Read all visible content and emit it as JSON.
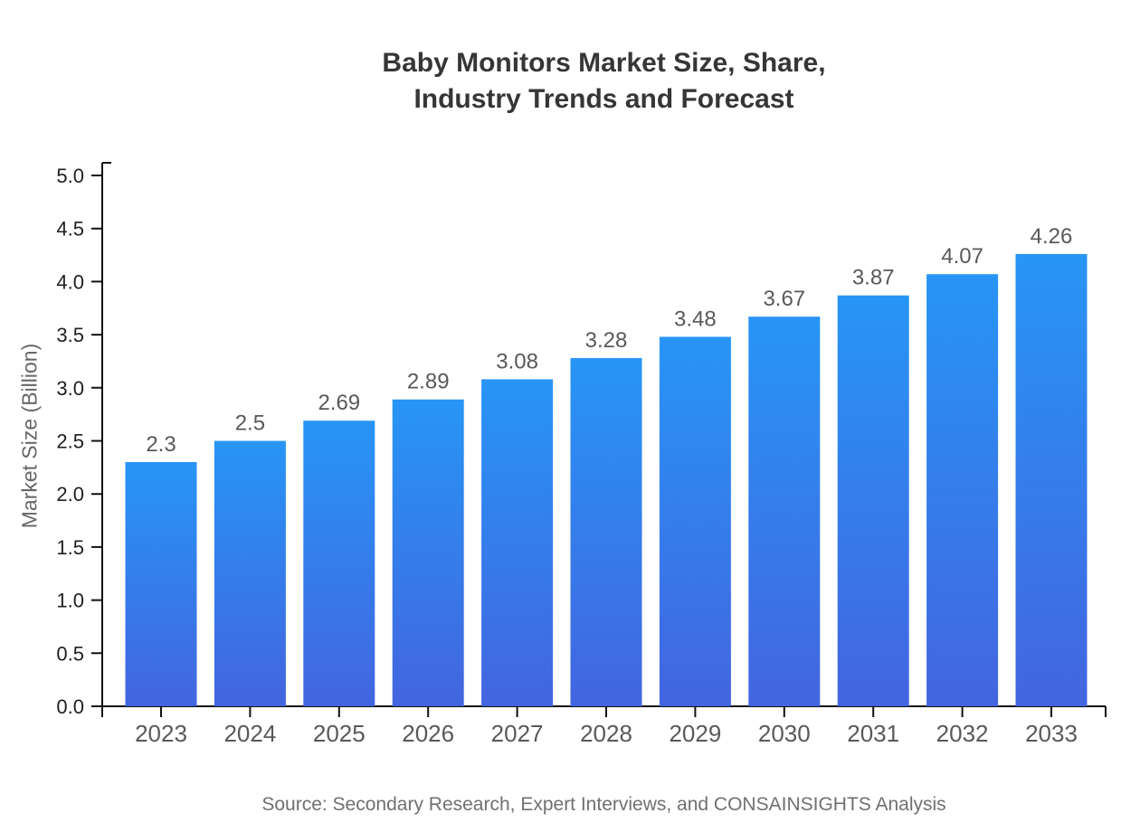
{
  "title": {
    "line1": "Baby Monitors Market Size, Share,",
    "line2": "Industry Trends and Forecast"
  },
  "source": {
    "text": "Source: Secondary Research, Expert Interviews, and CONSAINSIGHTS Analysis"
  },
  "chart_data": {
    "type": "bar",
    "title": "Baby Monitors Market Size, Share, Industry Trends and Forecast",
    "categories": [
      "2023",
      "2024",
      "2025",
      "2026",
      "2027",
      "2028",
      "2029",
      "2030",
      "2031",
      "2032",
      "2033"
    ],
    "values": [
      2.3,
      2.5,
      2.69,
      2.89,
      3.08,
      3.28,
      3.48,
      3.67,
      3.87,
      4.07,
      4.26
    ],
    "value_labels": [
      "2.3",
      "2.5",
      "2.69",
      "2.89",
      "3.08",
      "3.28",
      "3.48",
      "3.67",
      "3.87",
      "4.07",
      "4.26"
    ],
    "xlabel": "",
    "ylabel": "Market Size (Billion)",
    "ylim": [
      0,
      5
    ],
    "ytick_step": 0.5,
    "yticks": [
      "0.0",
      "0.5",
      "1.0",
      "1.5",
      "2.0",
      "2.5",
      "3.0",
      "3.5",
      "4.0",
      "4.5",
      "5.0"
    ],
    "grid": false,
    "legend": "none",
    "colors": {
      "bar_gradient_top": "#2795F6",
      "bar_gradient_bottom": "#4365DF",
      "axis": "#111111",
      "ytick_label": "#1f1f1f",
      "xtick_label": "#595959",
      "value_label": "#595959"
    }
  }
}
